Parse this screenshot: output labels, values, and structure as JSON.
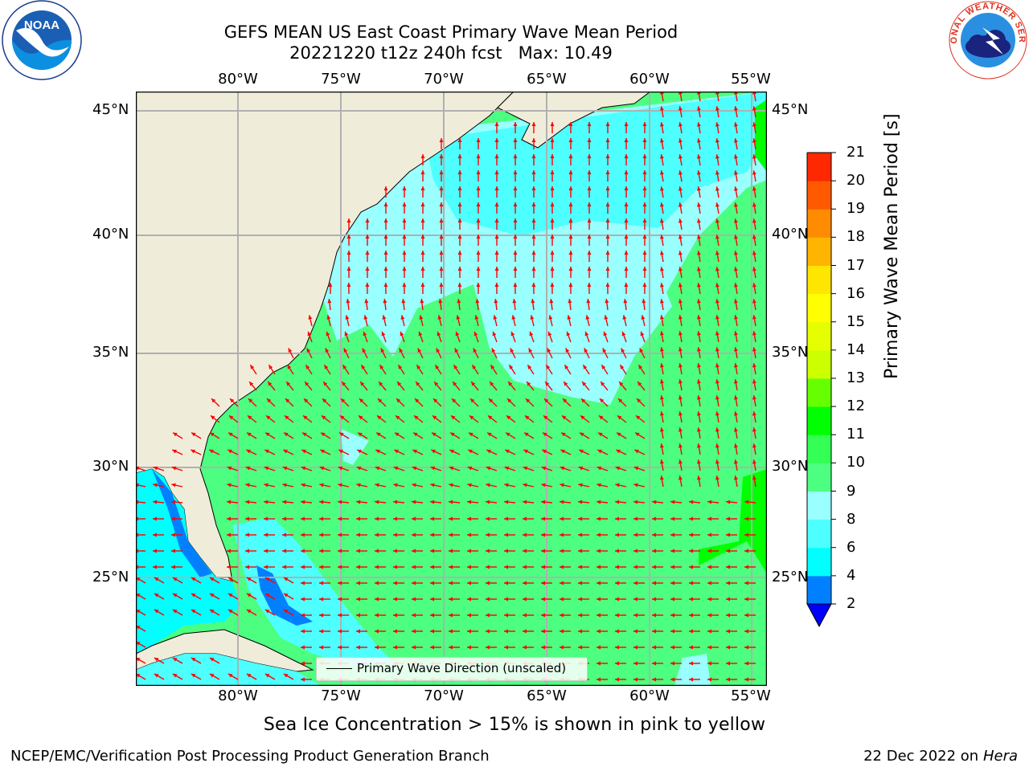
{
  "header": {
    "title_line1": "GEFS MEAN US East Coast Primary Wave Mean Period",
    "title_line2": "20221220 t12z 240h fcst   Max: 10.49"
  },
  "map": {
    "lon_labels": [
      "80°W",
      "75°W",
      "70°W",
      "65°W",
      "60°W",
      "55°W"
    ],
    "lat_labels": [
      "45°N",
      "40°N",
      "35°N",
      "30°N",
      "25°N"
    ],
    "legend_text": "Primary Wave Direction (unscaled)",
    "vector_color": "#ff0000",
    "land_color": "#efedda",
    "field_colors": {
      "2-4": "#0080ff",
      "4-6": "#00ffff",
      "6-8": "#4dffff",
      "8-9": "#99ffff",
      "9-10": "#4dff80",
      "10-11": "#00ff00",
      "11-12": "#66ff00"
    }
  },
  "colorbar": {
    "label": "Primary Wave Mean Period [s]",
    "ticks": [
      "2",
      "4",
      "6",
      "8",
      "9",
      "10",
      "11",
      "12",
      "13",
      "14",
      "15",
      "16",
      "17",
      "18",
      "19",
      "20",
      "21"
    ],
    "colors": [
      "#0080ff",
      "#00ffff",
      "#4dffff",
      "#99ffff",
      "#4dff80",
      "#33ff55",
      "#00ff00",
      "#66ff00",
      "#ccff00",
      "#e6ff00",
      "#ffff00",
      "#ffe600",
      "#ffb400",
      "#ff8c00",
      "#ff5a00",
      "#ff2800",
      "#ff0000"
    ],
    "under_color": "#0000ff"
  },
  "notes": {
    "sea_ice": "Sea Ice Concentration > 15% is shown in pink to yellow"
  },
  "footer": {
    "left": "NCEP/EMC/Verification Post Processing Product Generation Branch",
    "date": "22 Dec 2022 on",
    "machine": "Hera"
  },
  "logos": {
    "noaa_text": "NOAA",
    "noaa_ring": "NATIONAL OCEANIC AND ATMOSPHERIC ADMINISTRATION · U.S. DEPARTMENT OF COMMERCE",
    "nws_ring": "NATIONAL WEATHER SERVICE"
  }
}
